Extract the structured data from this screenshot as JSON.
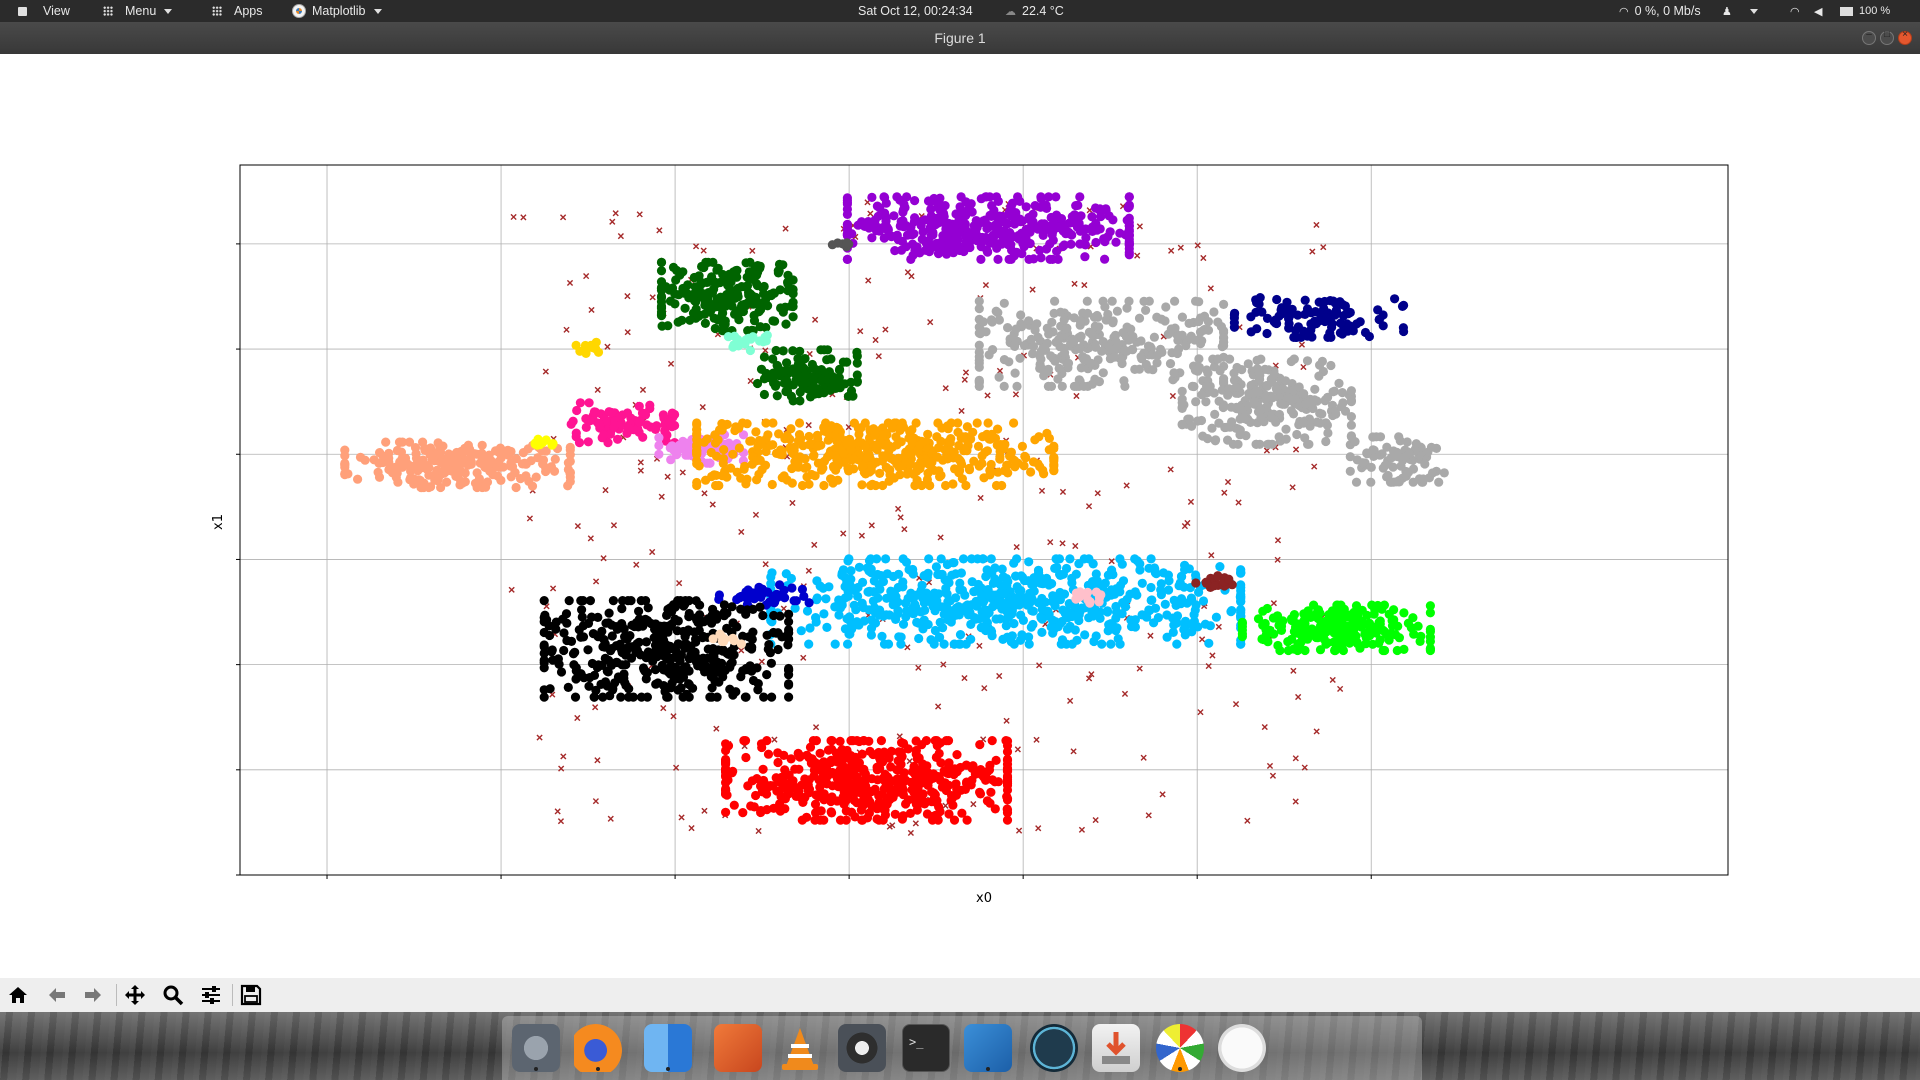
{
  "top_panel": {
    "view_label": "View",
    "menu_label": "Menu",
    "apps_label": "Apps",
    "app_menu_label": "Matplotlib",
    "datetime": "Sat Oct 12, 00:24:34",
    "temperature": "22.4 °C",
    "network_speed": "0 %, 0 Mb/s",
    "battery": "100 %"
  },
  "window": {
    "title": "Figure 1"
  },
  "toolbar": {
    "icons": [
      "home-icon",
      "back-arrow-icon",
      "forward-arrow-icon",
      "pan-icon",
      "zoom-icon",
      "configure-subplots-icon",
      "save-icon"
    ]
  },
  "dock": {
    "apps": [
      "system-settings",
      "firefox",
      "finder",
      "gimp",
      "vlc",
      "settings-gear",
      "terminal",
      "vscode",
      "stacer",
      "installer",
      "color-picker",
      "network-tool"
    ]
  },
  "chart_data": {
    "type": "scatter",
    "xlabel": "x0",
    "ylabel": "x1",
    "title": "",
    "grid": true,
    "tick_labels_visible": false,
    "markers": {
      "clusters": "circle",
      "noise": "x"
    },
    "noise_color": "#a52a2a",
    "clusters": [
      {
        "color": "#9400d3",
        "cx": 5.6,
        "cy": 6.3,
        "rx": 1.5,
        "ry": 0.55,
        "n": 420
      },
      {
        "color": "#006400",
        "cx": 2.6,
        "cy": 5.0,
        "rx": 0.7,
        "ry": 0.6,
        "n": 230
      },
      {
        "color": "#006400",
        "cx": 3.5,
        "cy": 3.5,
        "rx": 0.55,
        "ry": 0.45,
        "n": 120
      },
      {
        "color": "#a9a9a9",
        "cx": 6.9,
        "cy": 4.1,
        "rx": 1.3,
        "ry": 0.75,
        "n": 300
      },
      {
        "color": "#a9a9a9",
        "cx": 8.8,
        "cy": 3.0,
        "rx": 0.9,
        "ry": 0.75,
        "n": 260
      },
      {
        "color": "#a9a9a9",
        "cx": 10.3,
        "cy": 1.9,
        "rx": 0.5,
        "ry": 0.4,
        "n": 90
      },
      {
        "color": "#00008b",
        "cx": 9.4,
        "cy": 4.6,
        "rx": 0.9,
        "ry": 0.35,
        "n": 110
      },
      {
        "color": "#ffa07a",
        "cx": -0.5,
        "cy": 1.8,
        "rx": 1.2,
        "ry": 0.4,
        "n": 230
      },
      {
        "color": "#ff1493",
        "cx": 1.4,
        "cy": 2.6,
        "rx": 0.55,
        "ry": 0.35,
        "n": 90
      },
      {
        "color": "#ee82ee",
        "cx": 2.3,
        "cy": 2.1,
        "rx": 0.45,
        "ry": 0.25,
        "n": 70
      },
      {
        "color": "#ffa500",
        "cx": 4.3,
        "cy": 2.0,
        "rx": 1.9,
        "ry": 0.55,
        "n": 480
      },
      {
        "color": "#00bfff",
        "cx": 5.8,
        "cy": -0.8,
        "rx": 2.5,
        "ry": 0.75,
        "n": 650
      },
      {
        "color": "#0000cd",
        "cx": 3.0,
        "cy": -0.7,
        "rx": 0.5,
        "ry": 0.2,
        "n": 40
      },
      {
        "color": "#000000",
        "cx": 1.9,
        "cy": -1.7,
        "rx": 1.3,
        "ry": 0.85,
        "n": 430
      },
      {
        "color": "#ff0000",
        "cx": 4.2,
        "cy": -4.2,
        "rx": 1.5,
        "ry": 0.7,
        "n": 500
      },
      {
        "color": "#00ff00",
        "cx": 9.6,
        "cy": -1.3,
        "rx": 1.0,
        "ry": 0.4,
        "n": 230
      },
      {
        "color": "#7fffd4",
        "cx": 2.85,
        "cy": 4.1,
        "rx": 0.22,
        "ry": 0.18,
        "n": 20
      },
      {
        "color": "#ffd700",
        "cx": 1.0,
        "cy": 4.0,
        "rx": 0.15,
        "ry": 0.12,
        "n": 12
      },
      {
        "color": "#ffff00",
        "cx": 0.5,
        "cy": 2.2,
        "rx": 0.1,
        "ry": 0.08,
        "n": 10
      },
      {
        "color": "#ffc0cb",
        "cx": 6.8,
        "cy": -0.7,
        "rx": 0.18,
        "ry": 0.12,
        "n": 15
      },
      {
        "color": "#ffdab9",
        "cx": 2.6,
        "cy": -1.5,
        "rx": 0.15,
        "ry": 0.1,
        "n": 10
      },
      {
        "color": "#8b2323",
        "cx": 8.2,
        "cy": -0.45,
        "rx": 0.2,
        "ry": 0.13,
        "n": 18
      },
      {
        "color": "#555555",
        "cx": 3.9,
        "cy": 6.0,
        "rx": 0.15,
        "ry": 0.05,
        "n": 8
      }
    ],
    "noise_region": {
      "xlim": [
        0,
        9.8
      ],
      "ylim": [
        -5.3,
        6.8
      ],
      "n": 300
    },
    "xlim": [
      -3,
      14.1
    ],
    "ylim": [
      -6,
      7.5
    ],
    "x_gridlines": [
      -2,
      0,
      2,
      4,
      6,
      8,
      10
    ],
    "y_gridlines": [
      -6,
      -4,
      -2,
      0,
      2,
      4,
      6
    ]
  }
}
